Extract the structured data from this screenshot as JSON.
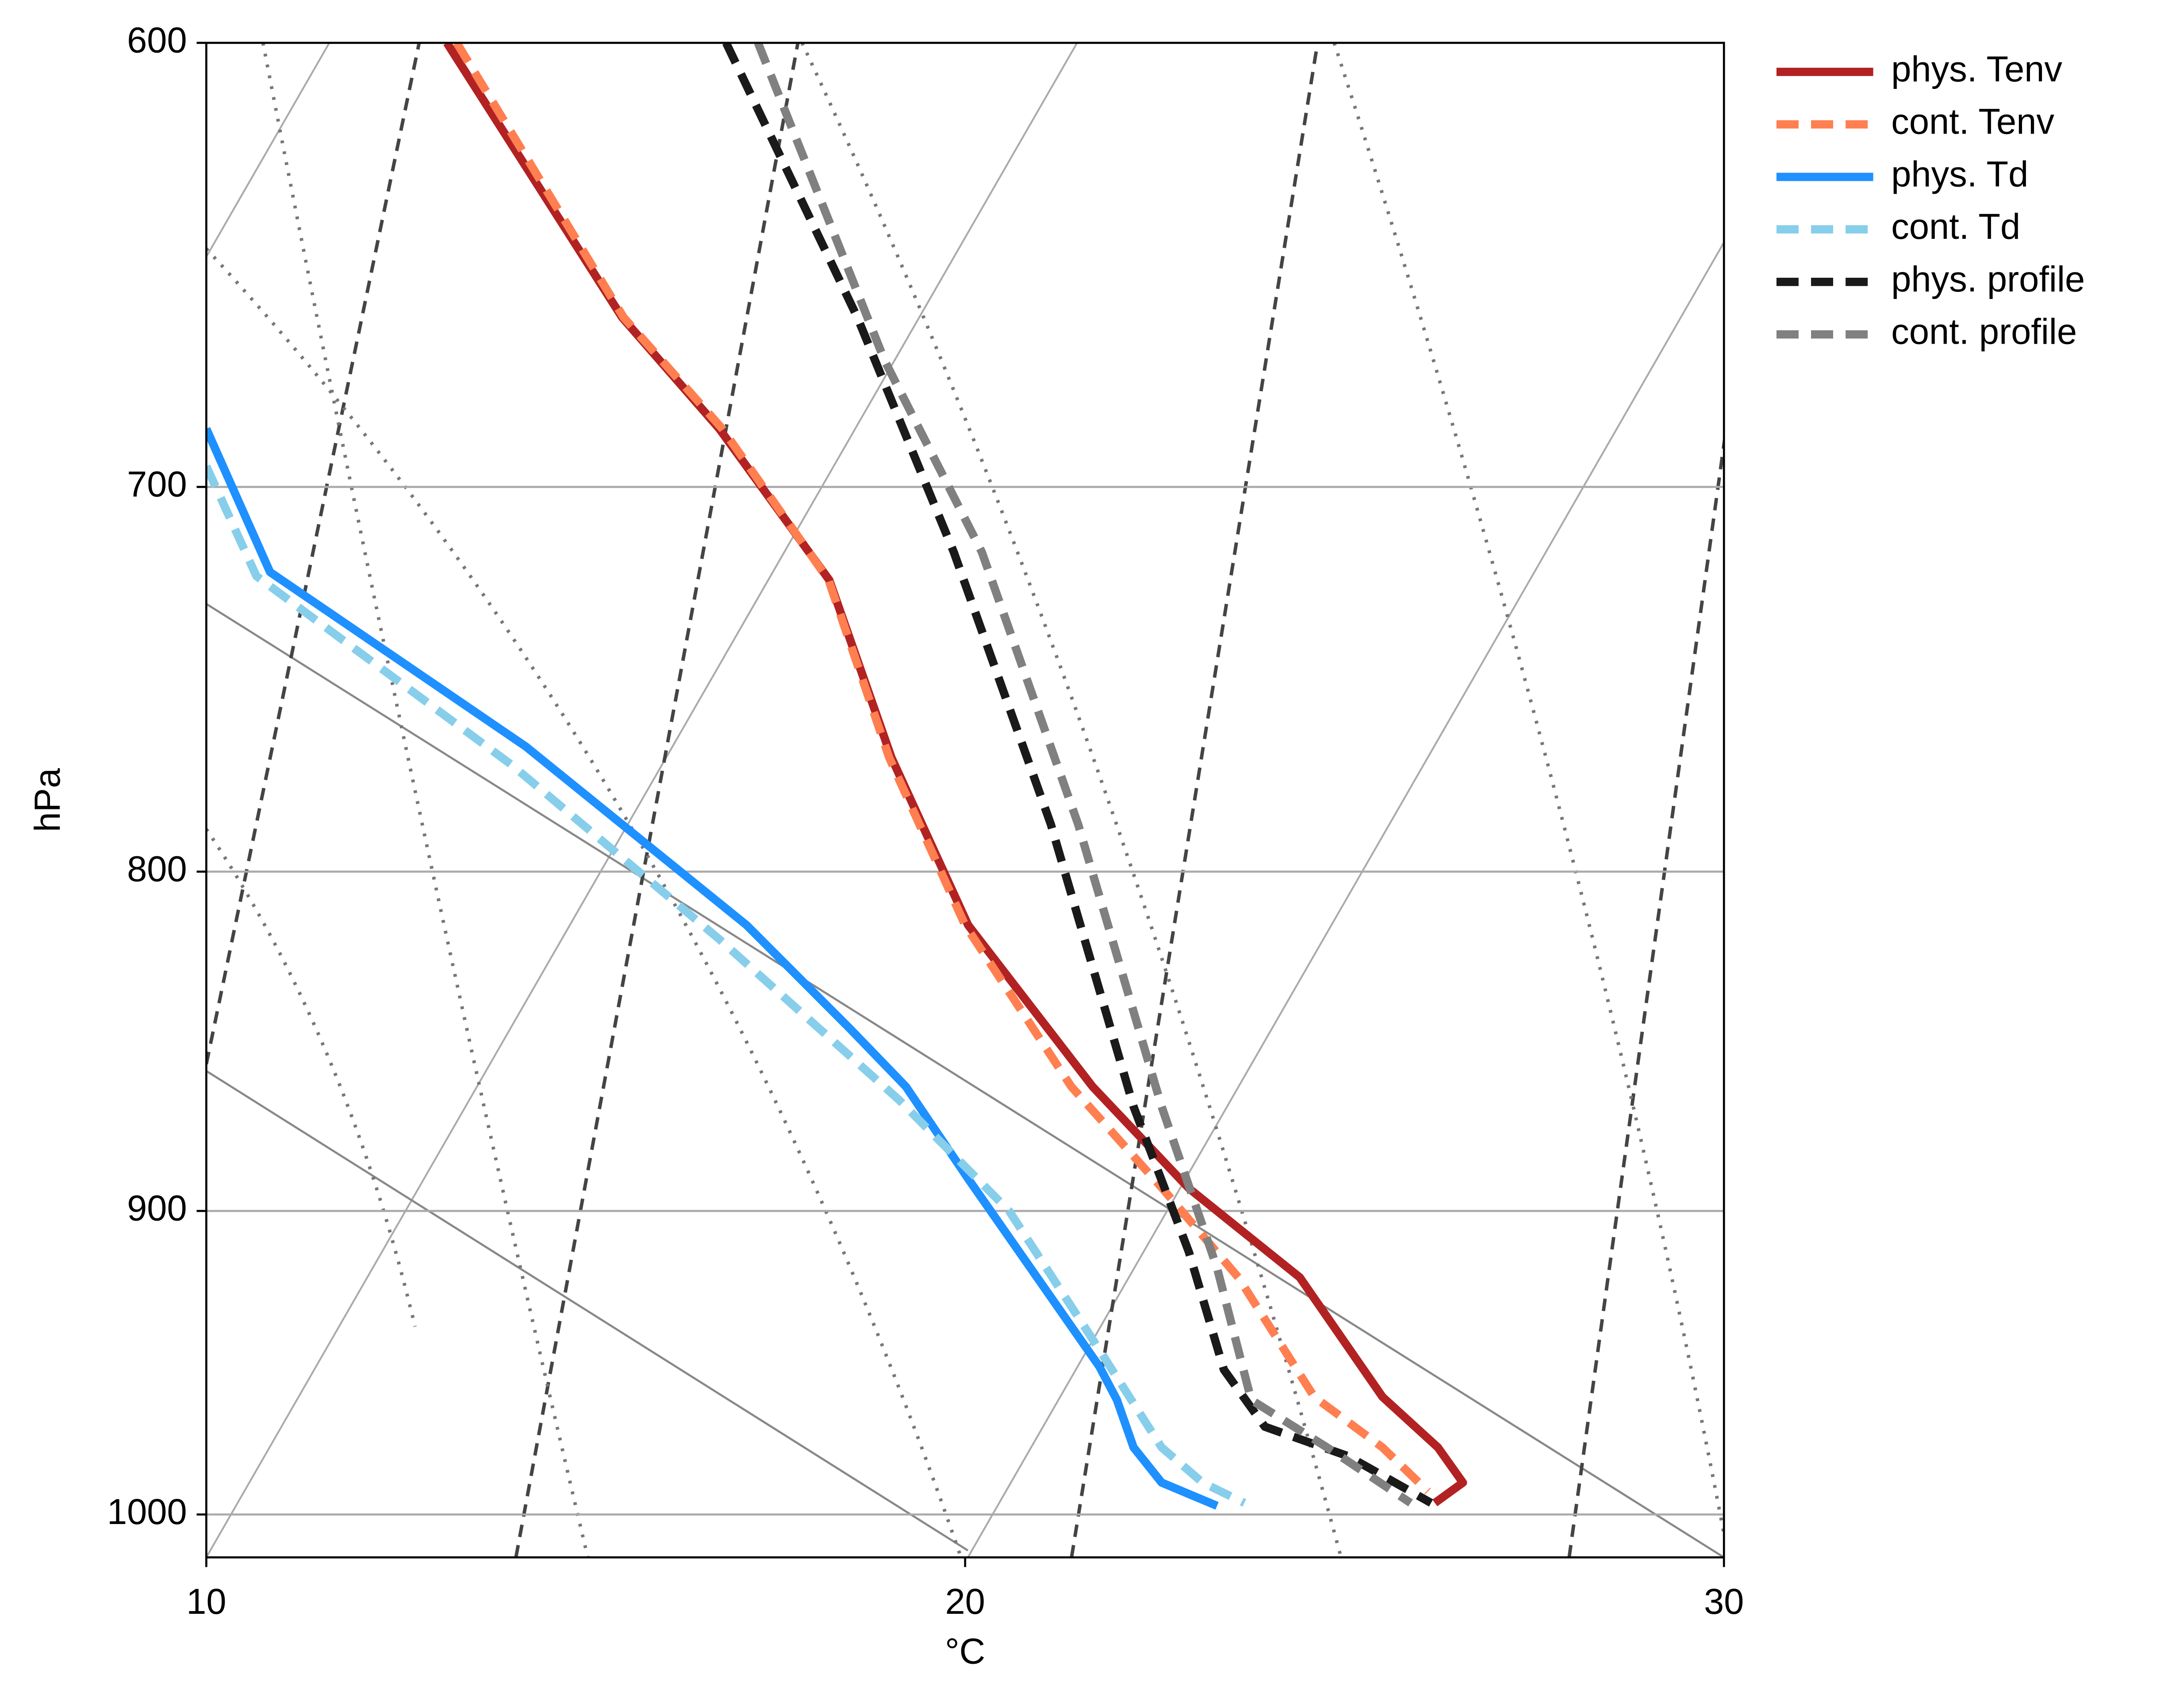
{
  "chart_data": {
    "type": "line",
    "xlabel": "°C",
    "ylabel": "hPa",
    "xlim": [
      10,
      30
    ],
    "xticks": [
      10,
      20,
      30
    ],
    "ylim": [
      1015,
      600
    ],
    "yticks": [
      600,
      700,
      800,
      900,
      1000
    ],
    "yscale": "log",
    "grid": true,
    "legend": "outside upper right",
    "series": [
      {
        "name": "phys. Tenv",
        "color": "#b22222",
        "dash": false,
        "x": [
          13.17,
          15.48,
          16.76,
          18.21,
          19.03,
          20.04,
          21.68,
          22.95,
          24.41,
          25.5,
          26.23,
          26.56,
          26.19
        ],
        "y": [
          600,
          660,
          686,
          723,
          769,
          815,
          862,
          893,
          921,
          960,
          977,
          989,
          996
        ]
      },
      {
        "name": "cont. Tenv",
        "color": "#ff7f50",
        "dash": true,
        "x": [
          13.3,
          15.5,
          16.8,
          18.2,
          19.0,
          20.0,
          21.4,
          22.6,
          23.6,
          24.6,
          25.5,
          26.1
        ],
        "y": [
          600,
          660,
          686,
          723,
          769,
          815,
          862,
          893,
          921,
          960,
          977,
          992
        ]
      },
      {
        "name": "phys. Td",
        "color": "#1e90ff",
        "dash": false,
        "x": [
          10.0,
          10.84,
          14.21,
          17.12,
          18.49,
          19.22,
          20.04,
          21.77,
          22.0,
          22.22,
          22.59,
          23.32
        ],
        "y": [
          686,
          721,
          766,
          815,
          845,
          862,
          890,
          950,
          961,
          977,
          989,
          997
        ]
      },
      {
        "name": "cont. Td",
        "color": "#87ceeb",
        "dash": true,
        "x": [
          10.0,
          10.66,
          14.03,
          16.76,
          19.13,
          20.58,
          21.68,
          22.59,
          23.13,
          23.68
        ],
        "y": [
          695,
          722,
          771,
          819,
          866,
          900,
          941,
          977,
          989,
          996
        ]
      },
      {
        "name": "phys. profile",
        "color": "#1a1a1a",
        "dash": true,
        "x": [
          16.85,
          18.58,
          19.85,
          21.13,
          22.22,
          22.95,
          23.41,
          23.95,
          25.05,
          26.14
        ],
        "y": [
          600,
          660,
          716,
          787,
          868,
          913,
          951,
          970,
          980,
          996
        ]
      },
      {
        "name": "cont. profile",
        "color": "#808080",
        "dash": true,
        "x": [
          17.27,
          18.94,
          20.22,
          21.49,
          22.59,
          23.32,
          23.77,
          24.77,
          25.87
        ],
        "y": [
          600,
          670,
          716,
          787,
          868,
          918,
          961,
          977,
          996
        ]
      }
    ]
  }
}
